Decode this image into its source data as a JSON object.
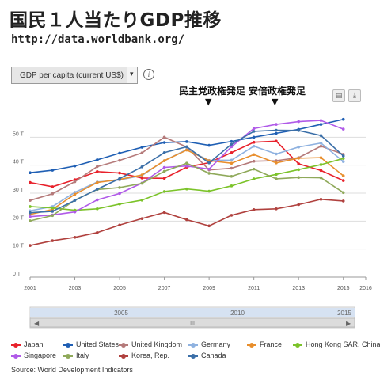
{
  "title": "国民１人当たりGDP推移",
  "url": "http://data.worldbank.org/",
  "selector": {
    "label": "GDP per capita (current US$)",
    "arrow": "▾"
  },
  "info_icon": "i",
  "annotations": [
    {
      "label": "民主党政権発足",
      "arrow": "▼"
    },
    {
      "label": "安倍政権発足",
      "arrow": "▼"
    }
  ],
  "toolbar": {
    "print_icon": "▤",
    "download_icon": "⤓"
  },
  "source": "Source: World Development Indicators",
  "navigator": {
    "labels": [
      "2005",
      "2010",
      "2015"
    ],
    "grip": "III",
    "left_arrow": "◀",
    "right_arrow": "▶"
  },
  "chart_data": {
    "type": "line",
    "x": [
      2001,
      2002,
      2003,
      2004,
      2005,
      2006,
      2007,
      2008,
      2009,
      2010,
      2011,
      2012,
      2013,
      2014,
      2015
    ],
    "x_ticks": [
      "2001",
      "2003",
      "2005",
      "2007",
      "2009",
      "2011",
      "2013",
      "2015",
      "2016"
    ],
    "x_tick_values": [
      2001,
      2003,
      2005,
      2007,
      2009,
      2011,
      2013,
      2015,
      2016
    ],
    "xlim": [
      2001,
      2016
    ],
    "ylim": [
      0,
      60000
    ],
    "y_ticks": [
      {
        "value": 0,
        "label": "0 T"
      },
      {
        "value": 10000,
        "label": "10 T"
      },
      {
        "value": 20000,
        "label": "20 T"
      },
      {
        "value": 30000,
        "label": "30 T"
      },
      {
        "value": 40000,
        "label": "40 T"
      },
      {
        "value": 50000,
        "label": "50 T"
      }
    ],
    "grid": true,
    "legend_position": "bottom",
    "series": [
      {
        "name": "Japan",
        "color": "#e8212b",
        "values": [
          33800,
          32300,
          34800,
          37700,
          37200,
          35400,
          35300,
          39300,
          40900,
          44500,
          48200,
          48600,
          40500,
          38100,
          34500
        ]
      },
      {
        "name": "United States",
        "color": "#1f5fb4",
        "values": [
          37300,
          38200,
          39700,
          41900,
          44300,
          46400,
          48100,
          48400,
          47100,
          48500,
          50000,
          51400,
          52800,
          54600,
          56400
        ]
      },
      {
        "name": "United Kingdom",
        "color": "#b57a7a",
        "values": [
          27400,
          29800,
          34100,
          39500,
          41700,
          44400,
          50000,
          46500,
          38300,
          38900,
          41400,
          41600,
          42700,
          46800,
          43900
        ]
      },
      {
        "name": "Germany",
        "color": "#8fb2e0",
        "values": [
          23700,
          25200,
          30300,
          34000,
          34700,
          36300,
          41600,
          45600,
          41700,
          41800,
          46800,
          44000,
          46500,
          47900,
          41300
        ]
      },
      {
        "name": "France",
        "color": "#e88e2c",
        "values": [
          22400,
          24200,
          29600,
          33800,
          34900,
          36500,
          41600,
          45400,
          41600,
          40700,
          43800,
          40800,
          42500,
          42700,
          36200
        ]
      },
      {
        "name": "Hong Kong SAR, China",
        "color": "#7cc32a",
        "values": [
          25200,
          24700,
          23900,
          24400,
          26100,
          27500,
          30600,
          31500,
          30700,
          32600,
          35100,
          36700,
          38400,
          40200,
          42400
        ]
      },
      {
        "name": "Singapore",
        "color": "#b05ae8",
        "values": [
          21600,
          22200,
          23300,
          27600,
          29900,
          33600,
          39200,
          39700,
          38600,
          46600,
          53100,
          54600,
          55600,
          56000,
          52900
        ]
      },
      {
        "name": "Italy",
        "color": "#8fa95a",
        "values": [
          20100,
          22000,
          27500,
          31300,
          32000,
          33500,
          37800,
          40700,
          37100,
          36000,
          38600,
          35100,
          35600,
          35500,
          30200
        ]
      },
      {
        "name": "Korea, Rep.",
        "color": "#b0413e",
        "values": [
          11300,
          13000,
          14200,
          15900,
          18600,
          20900,
          23100,
          20500,
          18300,
          22100,
          24100,
          24400,
          25900,
          27800,
          27200
        ]
      },
      {
        "name": "Canada",
        "color": "#3b6fa8",
        "values": [
          23000,
          23500,
          27400,
          31400,
          35200,
          39400,
          44500,
          46600,
          40800,
          47500,
          52100,
          52500,
          52400,
          50600,
          43300
        ]
      }
    ]
  }
}
